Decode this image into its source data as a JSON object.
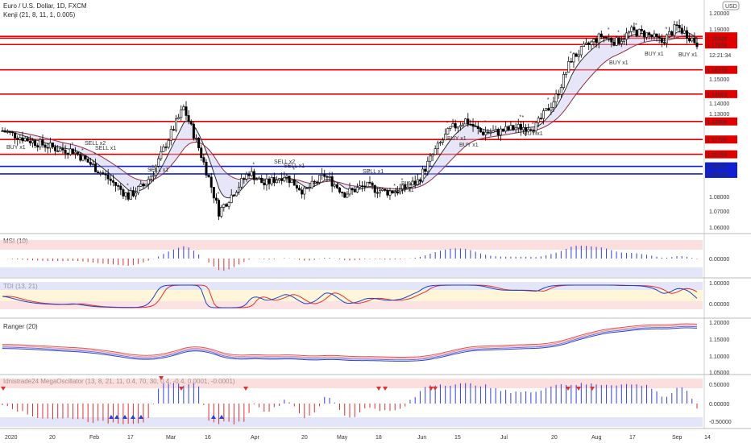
{
  "header": {
    "symbol": "Euro / U.S. Dollar, 1D, FXCM",
    "indicator": "Kenji (21, 8, 11, 1, 0.005)"
  },
  "currency_badge": "USD",
  "price_axis": [
    "1.20000",
    "1.19000",
    "1.18465",
    "1.18346",
    "12:21:34",
    "1.17934",
    "1.16279",
    "1.15000",
    "1.14693",
    "1.14000",
    "1.13000",
    "1.12906",
    "1.11726",
    "1.10759",
    "1.09972",
    "1.09478",
    "1.08000",
    "1.07000",
    "1.06000"
  ],
  "levels": [
    {
      "price": "1.18465",
      "color": "#e00000"
    },
    {
      "price": "1.18346",
      "color": "#e00000"
    },
    {
      "price": "1.17934",
      "color": "#e00000"
    },
    {
      "price": "1.16279",
      "color": "#e00000"
    },
    {
      "price": "1.14693",
      "color": "#e00000"
    },
    {
      "price": "1.12906",
      "color": "#e00000"
    },
    {
      "price": "1.11726",
      "color": "#e00000"
    },
    {
      "price": "1.10759",
      "color": "#e00000"
    },
    {
      "price": "1.09972",
      "color": "#1020d0"
    },
    {
      "price": "1.09478",
      "color": "#1020d0"
    }
  ],
  "signals": [
    {
      "text": "BUY x1",
      "color": "#3050c8"
    },
    {
      "text": "SELL x2",
      "color": "#e04040"
    },
    {
      "text": "SELL x1",
      "color": "#e04040"
    },
    {
      "text": "SELL x1",
      "color": "#e04040"
    },
    {
      "text": "SELL x2",
      "color": "#e04040"
    },
    {
      "text": "SELL x1",
      "color": "#e04040"
    },
    {
      "text": "SELL x1",
      "color": "#e04040"
    },
    {
      "text": "BUY x1",
      "color": "#3050c8"
    },
    {
      "text": "BUY x1",
      "color": "#3050c8"
    },
    {
      "text": "BUY x1",
      "color": "#3050c8"
    },
    {
      "text": "BUY x1",
      "color": "#3050c8"
    },
    {
      "text": "BUY x1",
      "color": "#3050c8"
    },
    {
      "text": "BUY x1",
      "color": "#3050c8"
    },
    {
      "text": "BUY x1",
      "color": "#3050c8"
    },
    {
      "text": "BUY x1",
      "color": "#3050c8"
    }
  ],
  "panes": [
    {
      "title": "MSI (10)",
      "ticks": [
        "0.00000"
      ]
    },
    {
      "title": "TDI (13, 21)",
      "ticks": [
        "1.00000",
        "0.00000"
      ]
    },
    {
      "title": "Ranger (20)",
      "ticks": [
        "1.20000",
        "1.15000",
        "1.10000",
        "1.05000"
      ]
    },
    {
      "title": "Idnistrade24 MegaOscillator (13, 8, 21, 11, 0.4, 70, 30, 0.4, -0.4, 0.0001, -0.0001)",
      "ticks": [
        "0.50000",
        "0.00000",
        "-0.50000"
      ]
    }
  ],
  "time_axis": [
    "2020",
    "20",
    "Feb",
    "17",
    "Mar",
    "16",
    "Apr",
    "20",
    "May",
    "18",
    "Jun",
    "15",
    "Jul",
    "20",
    "Aug",
    "17",
    "Sep",
    "14"
  ],
  "colors": {
    "bull": "#ffffff",
    "bear": "#000000",
    "up_bar": "#3040e0",
    "down_bar": "#e03030",
    "level_red": "#e00000",
    "level_blue": "#1020d0"
  }
}
